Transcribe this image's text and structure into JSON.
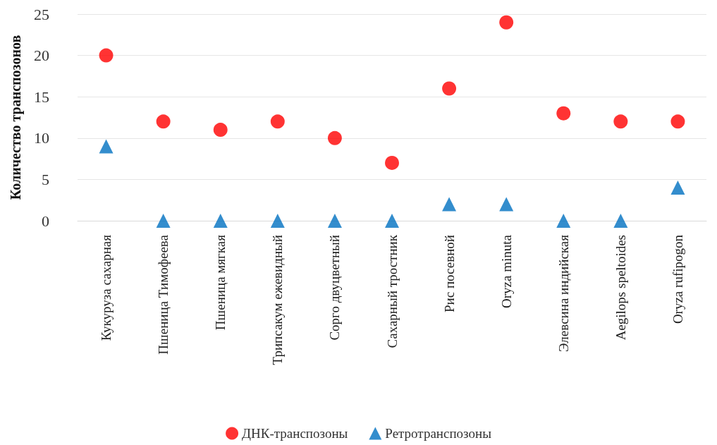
{
  "chart_data": {
    "type": "scatter",
    "ylabel": "Количество транспозонов",
    "categories": [
      "Кукуруза сахарная",
      "Пшеница Тимофеева",
      "Пшеница мягкая",
      "Трипсакум ежевидный",
      "Сорго двуцветный",
      "Сахарный тростник",
      "Рис посевной",
      "Oryza minuta",
      "Элевсина индийская",
      "Aegilops speltoides",
      "Oryza rufipogon"
    ],
    "series": [
      {
        "name": "ДНК-транспозоны",
        "color": "#ff0000",
        "marker": "circle",
        "values": [
          20,
          12,
          11,
          12,
          10,
          7,
          16,
          24,
          13,
          12,
          12
        ]
      },
      {
        "name": "Ретротранспозоны",
        "color": "#0070c0",
        "marker": "triangle",
        "values": [
          9,
          0,
          0,
          0,
          0,
          0,
          2,
          2,
          0,
          0,
          4
        ]
      }
    ],
    "ylim": [
      0,
      25
    ],
    "yticks": [
      0,
      5,
      10,
      15,
      20,
      25
    ],
    "grid": "y",
    "legend": "bottom"
  }
}
